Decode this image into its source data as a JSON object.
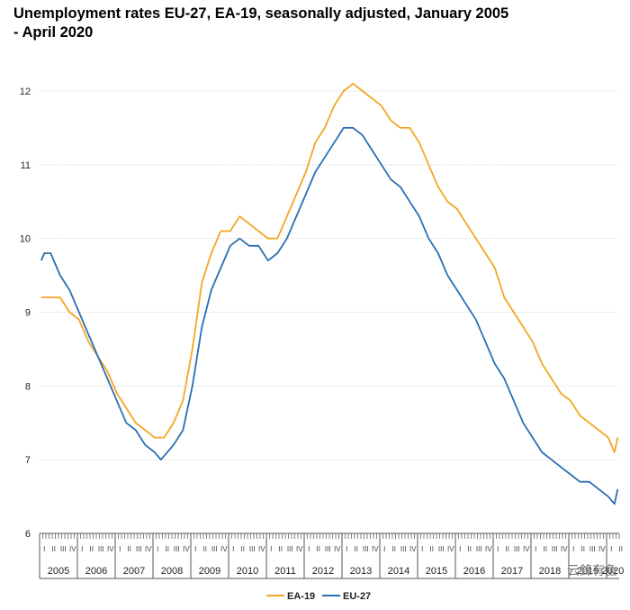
{
  "chart_data": {
    "type": "line",
    "title": "Unemployment rates EU-27, EA-19, seasonally adjusted, January 2005 - April 2020",
    "xlabel": "",
    "ylabel": "",
    "ylim": [
      6,
      12.5
    ],
    "yticks": [
      6,
      7,
      8,
      9,
      10,
      11,
      12
    ],
    "grid": true,
    "legend_position": "bottom-center",
    "x_start": "2005-01",
    "x_end": "2020-04",
    "year_labels": [
      "2005",
      "2006",
      "2007",
      "2008",
      "2009",
      "2010",
      "2011",
      "2012",
      "2013",
      "2014",
      "2015",
      "2016",
      "2017",
      "2018",
      "2019",
      "2020"
    ],
    "quarter_labels": [
      "I",
      "II",
      "III",
      "IV"
    ],
    "series": [
      {
        "name": "EA-19",
        "color": "#f5a623",
        "points": [
          [
            "2005-01",
            9.2
          ],
          [
            "2005-07",
            9.2
          ],
          [
            "2005-10",
            9.0
          ],
          [
            "2006-01",
            8.9
          ],
          [
            "2006-04",
            8.6
          ],
          [
            "2006-07",
            8.4
          ],
          [
            "2006-10",
            8.2
          ],
          [
            "2007-01",
            7.9
          ],
          [
            "2007-04",
            7.7
          ],
          [
            "2007-07",
            7.5
          ],
          [
            "2007-10",
            7.4
          ],
          [
            "2008-01",
            7.3
          ],
          [
            "2008-04",
            7.3
          ],
          [
            "2008-07",
            7.5
          ],
          [
            "2008-10",
            7.8
          ],
          [
            "2009-01",
            8.5
          ],
          [
            "2009-04",
            9.4
          ],
          [
            "2009-07",
            9.8
          ],
          [
            "2009-10",
            10.1
          ],
          [
            "2010-01",
            10.1
          ],
          [
            "2010-04",
            10.3
          ],
          [
            "2010-07",
            10.2
          ],
          [
            "2010-10",
            10.1
          ],
          [
            "2011-01",
            10.0
          ],
          [
            "2011-04",
            10.0
          ],
          [
            "2011-07",
            10.3
          ],
          [
            "2011-10",
            10.6
          ],
          [
            "2012-01",
            10.9
          ],
          [
            "2012-04",
            11.3
          ],
          [
            "2012-07",
            11.5
          ],
          [
            "2012-10",
            11.8
          ],
          [
            "2013-01",
            12.0
          ],
          [
            "2013-04",
            12.1
          ],
          [
            "2013-07",
            12.0
          ],
          [
            "2013-10",
            11.9
          ],
          [
            "2014-01",
            11.8
          ],
          [
            "2014-04",
            11.6
          ],
          [
            "2014-07",
            11.5
          ],
          [
            "2014-10",
            11.5
          ],
          [
            "2015-01",
            11.3
          ],
          [
            "2015-04",
            11.0
          ],
          [
            "2015-07",
            10.7
          ],
          [
            "2015-10",
            10.5
          ],
          [
            "2016-01",
            10.4
          ],
          [
            "2016-04",
            10.2
          ],
          [
            "2016-07",
            10.0
          ],
          [
            "2016-10",
            9.8
          ],
          [
            "2017-01",
            9.6
          ],
          [
            "2017-04",
            9.2
          ],
          [
            "2017-07",
            9.0
          ],
          [
            "2017-10",
            8.8
          ],
          [
            "2018-01",
            8.6
          ],
          [
            "2018-04",
            8.3
          ],
          [
            "2018-07",
            8.1
          ],
          [
            "2018-10",
            7.9
          ],
          [
            "2019-01",
            7.8
          ],
          [
            "2019-04",
            7.6
          ],
          [
            "2019-07",
            7.5
          ],
          [
            "2019-10",
            7.4
          ],
          [
            "2020-01",
            7.3
          ],
          [
            "2020-03",
            7.1
          ],
          [
            "2020-04",
            7.3
          ]
        ]
      },
      {
        "name": "EU-27",
        "color": "#2a6fb0",
        "points": [
          [
            "2005-01",
            9.7
          ],
          [
            "2005-02",
            9.8
          ],
          [
            "2005-04",
            9.8
          ],
          [
            "2005-07",
            9.5
          ],
          [
            "2005-10",
            9.3
          ],
          [
            "2006-01",
            9.0
          ],
          [
            "2006-04",
            8.7
          ],
          [
            "2006-07",
            8.4
          ],
          [
            "2006-10",
            8.1
          ],
          [
            "2007-01",
            7.8
          ],
          [
            "2007-04",
            7.5
          ],
          [
            "2007-07",
            7.4
          ],
          [
            "2007-10",
            7.2
          ],
          [
            "2008-01",
            7.1
          ],
          [
            "2008-03",
            7.0
          ],
          [
            "2008-07",
            7.2
          ],
          [
            "2008-10",
            7.4
          ],
          [
            "2009-01",
            8.0
          ],
          [
            "2009-04",
            8.8
          ],
          [
            "2009-07",
            9.3
          ],
          [
            "2009-10",
            9.6
          ],
          [
            "2010-01",
            9.9
          ],
          [
            "2010-04",
            10.0
          ],
          [
            "2010-07",
            9.9
          ],
          [
            "2010-10",
            9.9
          ],
          [
            "2011-01",
            9.7
          ],
          [
            "2011-04",
            9.8
          ],
          [
            "2011-07",
            10.0
          ],
          [
            "2011-10",
            10.3
          ],
          [
            "2012-01",
            10.6
          ],
          [
            "2012-04",
            10.9
          ],
          [
            "2012-07",
            11.1
          ],
          [
            "2012-10",
            11.3
          ],
          [
            "2013-01",
            11.5
          ],
          [
            "2013-04",
            11.5
          ],
          [
            "2013-07",
            11.4
          ],
          [
            "2013-10",
            11.2
          ],
          [
            "2014-01",
            11.0
          ],
          [
            "2014-04",
            10.8
          ],
          [
            "2014-07",
            10.7
          ],
          [
            "2014-10",
            10.5
          ],
          [
            "2015-01",
            10.3
          ],
          [
            "2015-04",
            10.0
          ],
          [
            "2015-07",
            9.8
          ],
          [
            "2015-10",
            9.5
          ],
          [
            "2016-01",
            9.3
          ],
          [
            "2016-04",
            9.1
          ],
          [
            "2016-07",
            8.9
          ],
          [
            "2016-10",
            8.6
          ],
          [
            "2017-01",
            8.3
          ],
          [
            "2017-04",
            8.1
          ],
          [
            "2017-07",
            7.8
          ],
          [
            "2017-10",
            7.5
          ],
          [
            "2018-01",
            7.3
          ],
          [
            "2018-04",
            7.1
          ],
          [
            "2018-07",
            7.0
          ],
          [
            "2018-10",
            6.9
          ],
          [
            "2019-01",
            6.8
          ],
          [
            "2019-04",
            6.7
          ],
          [
            "2019-07",
            6.7
          ],
          [
            "2019-10",
            6.6
          ],
          [
            "2020-01",
            6.5
          ],
          [
            "2020-03",
            6.4
          ],
          [
            "2020-04",
            6.6
          ]
        ]
      }
    ]
  },
  "watermark": "云鋒有鱼"
}
